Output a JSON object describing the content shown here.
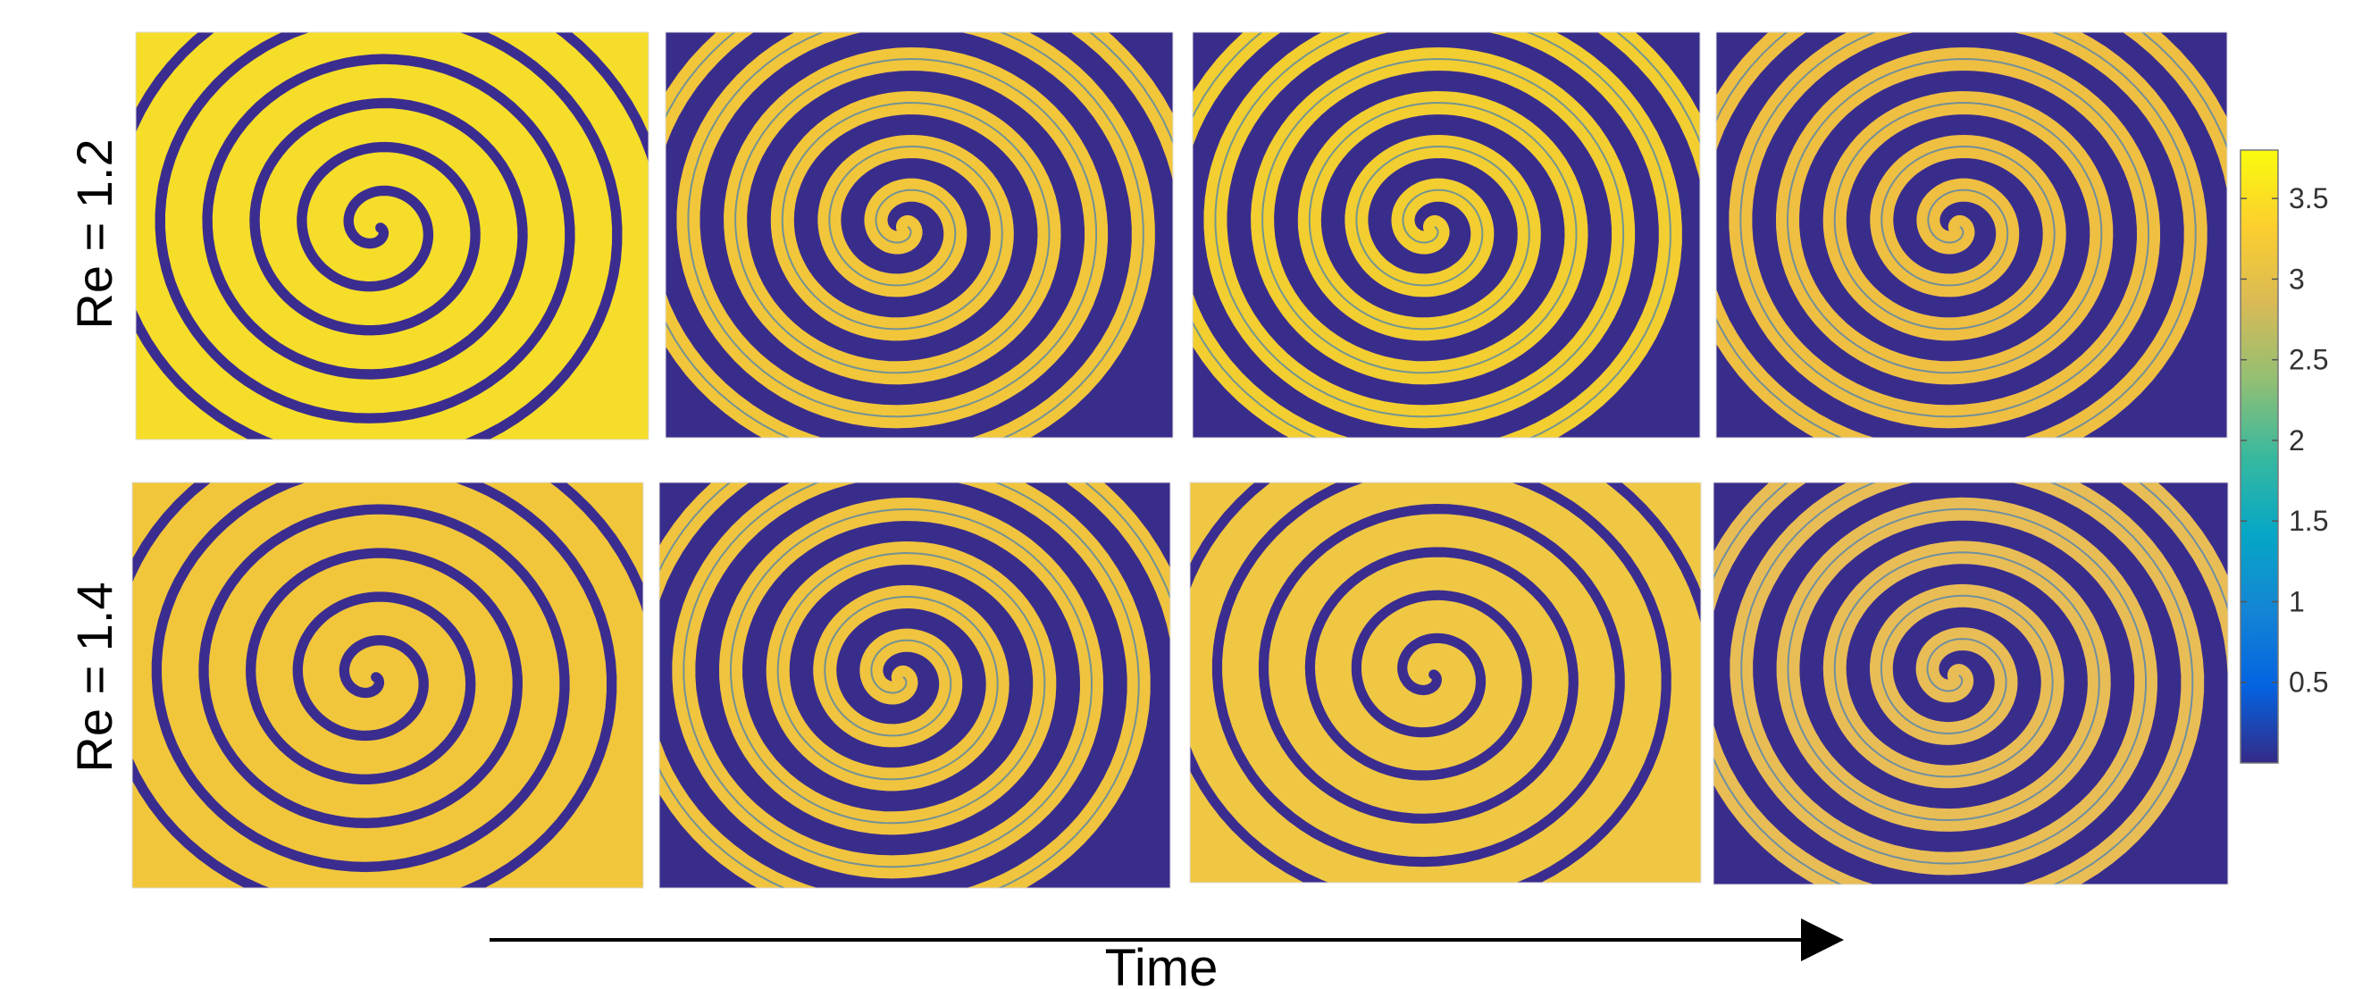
{
  "rows": [
    {
      "label": "Re = 1.2"
    },
    {
      "label": "Re = 1.4"
    }
  ],
  "colorbar": {
    "ticks": [
      "3.5",
      "3",
      "2.5",
      "2",
      "1.5",
      "1",
      "0.5"
    ],
    "tick_values": [
      3.5,
      3,
      2.5,
      2,
      1.5,
      1,
      0.5
    ],
    "min": 0,
    "max": 3.8,
    "colors": [
      "#352a87",
      "#0363e1",
      "#1485d4",
      "#06a7c6",
      "#38b99e",
      "#92bf73",
      "#d9ba56",
      "#fcce2e",
      "#f9fb0e"
    ]
  },
  "time_axis": {
    "label": "Time"
  },
  "colors": {
    "dark": "#3b2d8f",
    "bright": "#f3cf35",
    "yellow": "#f9f11a",
    "edge": "#1f6fd0"
  },
  "panels": [
    {
      "fg": "#f5dd2a",
      "bg": "#f5dd2a"
    },
    {
      "fg": "#f2c63a",
      "bg": "#392d8c"
    },
    {
      "fg": "#f2ce30",
      "bg": "#392d8c"
    },
    {
      "fg": "#efbf42",
      "bg": "#392d8c"
    },
    {
      "fg": "#f1c63b",
      "bg": "#f1c63b"
    },
    {
      "fg": "#f0c43e",
      "bg": "#392d8c"
    },
    {
      "fg": "#efc743",
      "bg": "#efc743"
    },
    {
      "fg": "#e9bd55",
      "bg": "#392d8c"
    }
  ]
}
